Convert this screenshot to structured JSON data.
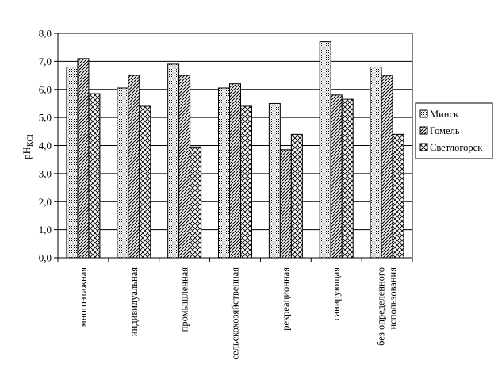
{
  "chart_data": {
    "type": "bar",
    "title": "",
    "ylabel": "pH",
    "ylabel_sub": "КСl",
    "ylim": [
      0,
      8
    ],
    "yticks": [
      "0,0",
      "1,0",
      "2,0",
      "3,0",
      "4,0",
      "5,0",
      "6,0",
      "7,0",
      "8,0"
    ],
    "grid": true,
    "legend_position": "right",
    "categories": [
      [
        "многоэтажная"
      ],
      [
        "индивидуальная"
      ],
      [
        "промышленная"
      ],
      [
        "сельскохозяйственная"
      ],
      [
        "рекреационная"
      ],
      [
        "санирующая"
      ],
      [
        "без определенного",
        "использования"
      ]
    ],
    "series": [
      {
        "name": "Минск",
        "pattern": "dots",
        "values": [
          6.8,
          6.05,
          6.9,
          6.05,
          5.5,
          7.7,
          6.8
        ]
      },
      {
        "name": "Гомель",
        "pattern": "diag",
        "values": [
          7.1,
          6.5,
          6.5,
          6.2,
          3.85,
          5.8,
          6.5
        ]
      },
      {
        "name": "Светлогорск",
        "pattern": "cross",
        "values": [
          5.85,
          5.4,
          3.95,
          5.4,
          4.4,
          5.65,
          4.4
        ]
      }
    ]
  }
}
